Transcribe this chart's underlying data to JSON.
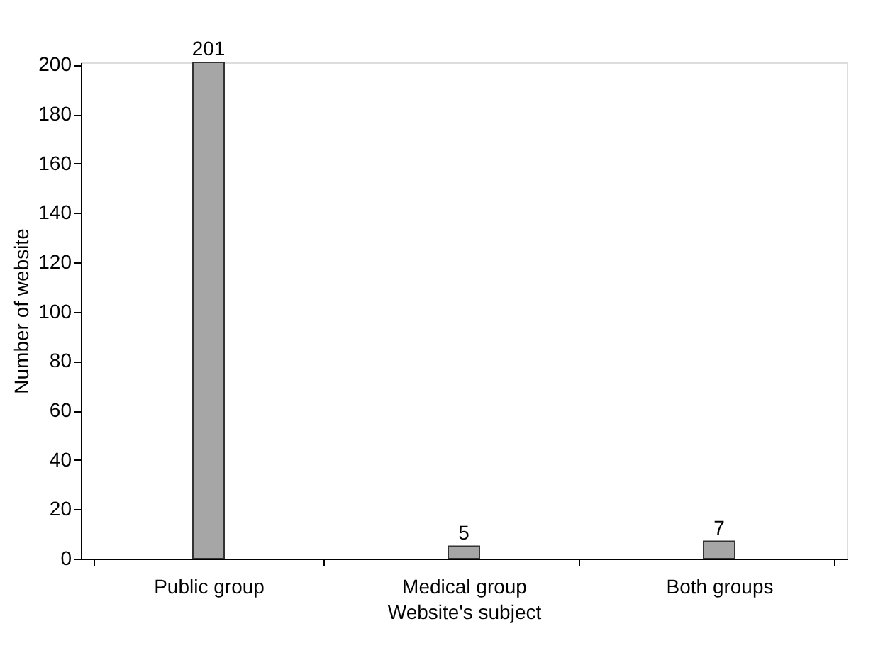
{
  "chart_data": {
    "type": "bar",
    "xlabel": "Website's subject",
    "ylabel": "Number of website",
    "categories": [
      "Public group",
      "Medical group",
      "Both groups"
    ],
    "values": [
      201,
      5,
      7
    ],
    "color": "#a6a6a6",
    "ylim": [
      0,
      201
    ],
    "yticks": [
      0,
      20,
      40,
      60,
      80,
      100,
      120,
      140,
      160,
      180,
      200
    ],
    "data_labels": true,
    "grid": false
  }
}
